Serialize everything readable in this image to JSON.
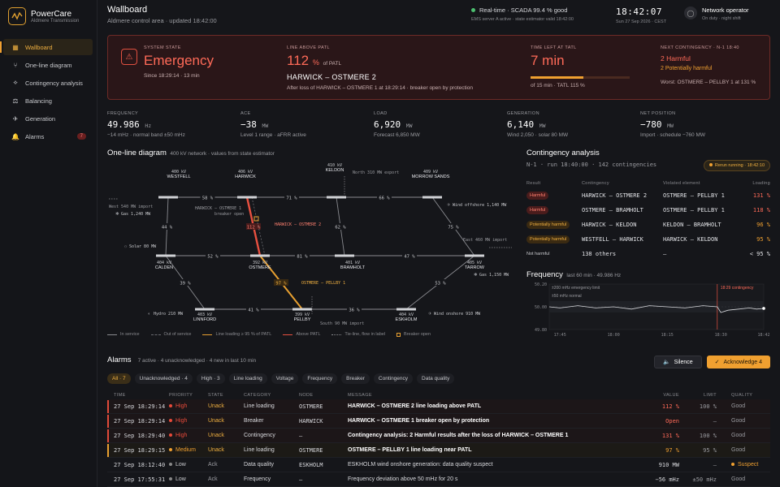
{
  "brand": {
    "name": "PowerCare",
    "sub": "Aldmere Transmission"
  },
  "nav": [
    {
      "label": "Wallboard",
      "icon": "▦",
      "name": "grid-icon",
      "active": true
    },
    {
      "label": "One-line diagram",
      "icon": "⑂",
      "name": "network-icon"
    },
    {
      "label": "Contingency analysis",
      "icon": "⟡",
      "name": "analysis-icon"
    },
    {
      "label": "Balancing",
      "icon": "⚖",
      "name": "scale-icon"
    },
    {
      "label": "Generation",
      "icon": "✈",
      "name": "generation-icon"
    },
    {
      "label": "Alarms",
      "icon": "🔔",
      "name": "bell-icon",
      "badge": "7"
    }
  ],
  "header": {
    "title": "Wallboard",
    "sub": "Aldmere control area · updated 18:42:00",
    "status_main": "Real-time · SCADA 99.4 % good",
    "status_sub": "EMS server A active · state estimator valid 18:42:00",
    "clock": "18:42:07",
    "date": "Sun 27 Sep 2026 · CEST",
    "user_name": "Network operator",
    "user_sub": "On duty · night shift"
  },
  "banner": {
    "state_lbl": "System state",
    "state": "Emergency",
    "state_since": "Since 18:29:14 · 13 min",
    "line_lbl": "Line above PATL",
    "line_pct": "112",
    "line_unit": "%",
    "line_of": "of PATL",
    "line_name": "HARWICK – OSTMERE 2",
    "line_note": "After loss of HARWICK – OSTMERE 1 at 18:29:14 · breaker open by protection",
    "tatl_lbl": "Time left at TATL",
    "tatl": "7 min",
    "tatl_note": "of 15 min · TATL 115 %",
    "tatl_progress": 0.53,
    "nc_lbl": "Next contingency · N-1 18:40",
    "nc_harm": "2 Harmful",
    "nc_pot": "2 Potentially harmful",
    "nc_worst": "Worst: OSTMERE – PELLBY 1 at 131 %"
  },
  "kpis": [
    {
      "label": "Frequency",
      "value": "49.986",
      "unit": "Hz",
      "sub": "−14 mHz · normal band ±50 mHz"
    },
    {
      "label": "ACE",
      "value": "−38",
      "unit": "MW",
      "sub": "Level 1 range · aFRR active"
    },
    {
      "label": "Load",
      "value": "6,920",
      "unit": "MW",
      "sub": "Forecast 6,850 MW"
    },
    {
      "label": "Generation",
      "value": "6,140",
      "unit": "MW",
      "sub": "Wind 2,050 · solar 80 MW"
    },
    {
      "label": "Net position",
      "value": "−780",
      "unit": "MW",
      "sub": "Import · schedule −760 MW"
    }
  ],
  "oneline": {
    "title": "One-line diagram",
    "sub": "400 kV network · values from state estimator",
    "subs": [
      {
        "name": "WESTFELL",
        "kv": "400 kV"
      },
      {
        "name": "HARWICK",
        "kv": "406 kV"
      },
      {
        "name": "KELDON",
        "kv": "410 kV"
      },
      {
        "name": "MORROW SANDS",
        "kv": "409 kV"
      },
      {
        "name": "CALDEN",
        "kv": "404 kV"
      },
      {
        "name": "OSTMERE",
        "kv": "392 kV"
      },
      {
        "name": "BRAMHOLT",
        "kv": "401 kV"
      },
      {
        "name": "TARROW",
        "kv": "405 kV"
      },
      {
        "name": "LINNFORD",
        "kv": "403 kV"
      },
      {
        "name": "PELLBY",
        "kv": "399 kV"
      },
      {
        "name": "ESKHOLM",
        "kv": "404 kV"
      }
    ],
    "flows": [
      "58 %",
      "71 %",
      "66 %",
      "44 %",
      "62 %",
      "75 %",
      "52 %",
      "81 %",
      "47 %",
      "39 %",
      "41 %",
      "36 %",
      "53 %",
      "112 %",
      "97 %"
    ],
    "notes": {
      "open": "HARWICK – OSTMERE 1",
      "open2": "breaker open",
      "hot1": "HARWICK – OSTMERE 2",
      "hot2": "OSTMERE – PELLBY 1",
      "north": "North 310 MW export",
      "west": "West 540 MW import",
      "east": "East 460 MW import",
      "south": "South 90 MW import"
    },
    "gens": [
      "Gas 1,240 MW",
      "Wind offshore 1,140 MW",
      "Solar 80 MW",
      "Gas 1,150 MW",
      "Hydro 210 MW",
      "Wind onshore 910 MW"
    ],
    "legend": [
      "In service",
      "Out of service",
      "Line loading ≥ 95 % of PATL",
      "Above PATL",
      "Tie-line, flow in label",
      "Breaker open"
    ]
  },
  "contingency": {
    "title": "Contingency analysis",
    "sub": "N-1 · run 18:40:00 · 142 contingencies",
    "rerun": "Rerun running · 18:42:10",
    "head": [
      "Result",
      "Contingency",
      "Violated element",
      "Loading"
    ],
    "rows": [
      {
        "result": "Harmful",
        "cls": "h",
        "cont": "HARWICK – OSTMERE 2",
        "elem": "OSTMERE – PELLBY 1",
        "load": "131 %",
        "lc": "red"
      },
      {
        "result": "Harmful",
        "cls": "h",
        "cont": "OSTMERE – BRAMHOLT",
        "elem": "OSTMERE – PELLBY 1",
        "load": "118 %",
        "lc": "red"
      },
      {
        "result": "Potentially harmful",
        "cls": "p",
        "cont": "HARWICK – KELDON",
        "elem": "KELDON – BRAMHOLT",
        "load": "96 %",
        "lc": "amber"
      },
      {
        "result": "Potentially harmful",
        "cls": "p",
        "cont": "WESTFELL – HARWICK",
        "elem": "HARWICK – KELDON",
        "load": "95 %",
        "lc": "amber"
      },
      {
        "result": "Not harmful",
        "cls": "n",
        "cont": "138 others",
        "elem": "—",
        "load": "< 95 %",
        "lc": ""
      }
    ]
  },
  "frequency": {
    "title": "Frequency",
    "sub": "last 60 min · 49.986 Hz",
    "band1": "±200 mHz emergency limit",
    "band2": "±50 mHz normal",
    "event": "18:29 contingency",
    "yticks": [
      "50.20",
      "50.00",
      "49.80"
    ],
    "xticks": [
      "17:45",
      "18:00",
      "18:15",
      "18:30",
      "18:42"
    ]
  },
  "chart_data": {
    "type": "line",
    "title": "Frequency",
    "x": [
      "17:42",
      "17:45",
      "17:50",
      "17:55",
      "18:00",
      "18:05",
      "18:10",
      "18:15",
      "18:20",
      "18:25",
      "18:29",
      "18:30",
      "18:32",
      "18:35",
      "18:38",
      "18:40",
      "18:42"
    ],
    "series": [
      {
        "values": [
          50.0,
          49.99,
          50.01,
          49.99,
          50.0,
          49.98,
          50.01,
          50.0,
          49.99,
          50.01,
          50.0,
          49.95,
          49.97,
          49.98,
          49.99,
          49.98,
          49.986
        ]
      }
    ],
    "ylim": [
      49.8,
      50.2
    ],
    "xticks": [
      "17:45",
      "18:00",
      "18:15",
      "18:30",
      "18:42"
    ],
    "yticks": [
      "50.20",
      "50.00",
      "49.80"
    ]
  },
  "alarms": {
    "title": "Alarms",
    "sub": "7 active · 4 unacknowledged · 4 new in last 10 min",
    "silence": "Silence",
    "ack": "Acknowledge 4",
    "chips": [
      "All · 7",
      "Unacknowledged · 4",
      "High · 3",
      "Line loading",
      "Voltage",
      "Frequency",
      "Breaker",
      "Contingency",
      "Data quality"
    ],
    "head": [
      "Time",
      "Priority",
      "State",
      "Category",
      "Node",
      "Message",
      "Value",
      "Limit",
      "Quality"
    ],
    "rows": [
      {
        "time": "27 Sep 18:29:14",
        "pri": "High",
        "pc": "#e84a3a",
        "state": "Unack",
        "cat": "Line loading",
        "node": "OSTMERE",
        "msg": "HARWICK – OSTMERE 2 line loading above PATL",
        "val": "112 %",
        "lim": "100 %",
        "q": "Good",
        "cls": "crit"
      },
      {
        "time": "27 Sep 18:29:14",
        "pri": "High",
        "pc": "#e84a3a",
        "state": "Unack",
        "cat": "Breaker",
        "node": "HARWICK",
        "msg": "HARWICK – OSTMERE 1 breaker open by protection",
        "val": "Open",
        "lim": "—",
        "q": "Good",
        "cls": "crit"
      },
      {
        "time": "27 Sep 18:29:40",
        "pri": "High",
        "pc": "#e84a3a",
        "state": "Unack",
        "cat": "Contingency",
        "node": "—",
        "msg": "Contingency analysis: 2 Harmful results after the loss of HARWICK – OSTMERE 1",
        "val": "131 %",
        "lim": "100 %",
        "q": "Good",
        "cls": "crit"
      },
      {
        "time": "27 Sep 18:29:15",
        "pri": "Medium",
        "pc": "#f0a030",
        "state": "Unack",
        "cat": "Line loading",
        "node": "OSTMERE",
        "msg": "OSTMERE – PELLBY 1 line loading near PATL",
        "val": "97 %",
        "lim": "95 %",
        "q": "Good",
        "cls": "warn"
      },
      {
        "time": "27 Sep 18:12:40",
        "pri": "Low",
        "pc": "#888",
        "state": "Ack",
        "cat": "Data quality",
        "node": "ESKHOLM",
        "msg": "ESKHOLM wind onshore generation: data quality suspect",
        "val": "910 MW",
        "lim": "—",
        "q": "Suspect",
        "cls": "low"
      },
      {
        "time": "27 Sep 17:55:31",
        "pri": "Low",
        "pc": "#888",
        "state": "Ack",
        "cat": "Frequency",
        "node": "—",
        "msg": "Frequency deviation above 50 mHz for 20 s",
        "val": "−56 mHz",
        "lim": "±50 mHz",
        "q": "Good",
        "cls": "low"
      }
    ]
  },
  "colors": {
    "accent": "#f0a030",
    "alarm": "#ff6a58",
    "ok": "#4cc070"
  }
}
